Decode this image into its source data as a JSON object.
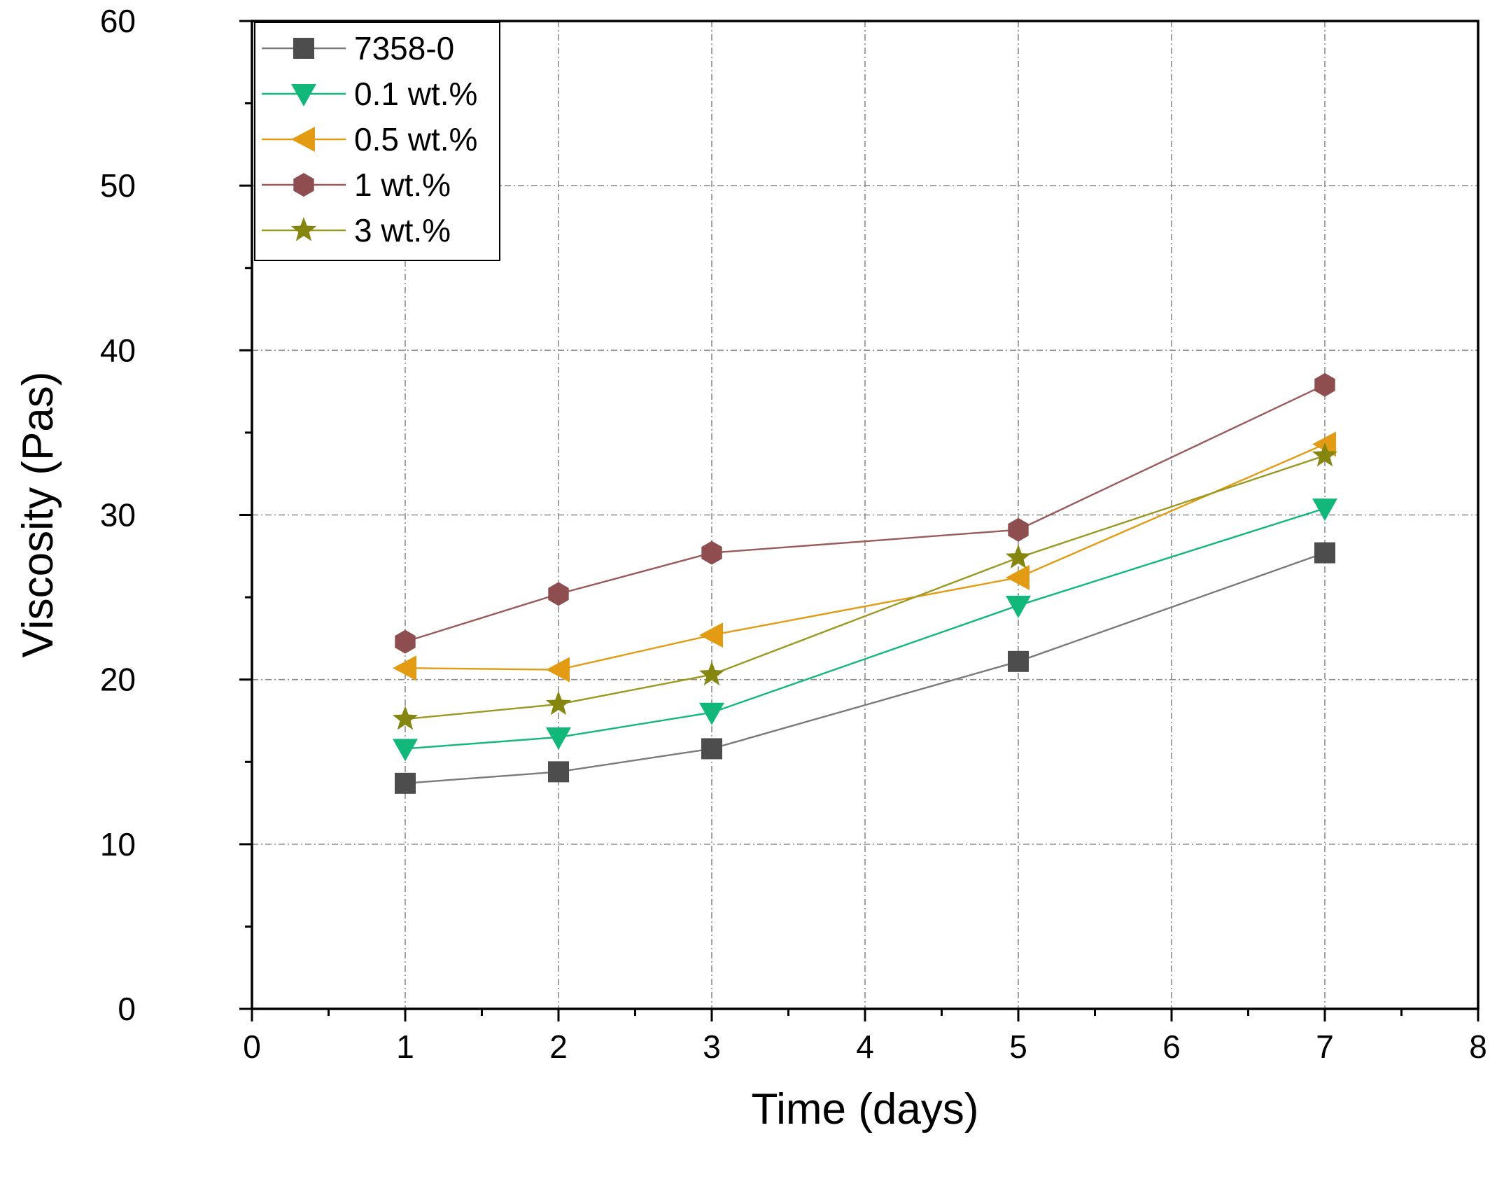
{
  "chart_data": {
    "type": "line",
    "title": "",
    "xlabel": "Time (days)",
    "ylabel": "Viscosity (Pas)",
    "xlim": [
      0,
      8
    ],
    "ylim": [
      0,
      60
    ],
    "xticks": [
      0,
      1,
      2,
      3,
      4,
      5,
      6,
      7,
      8
    ],
    "yticks": [
      0,
      10,
      20,
      30,
      40,
      50,
      60
    ],
    "grid": true,
    "legend_position": "top-left",
    "x": [
      1,
      2,
      3,
      5,
      7
    ],
    "series": [
      {
        "name": "7358-0",
        "marker": "square",
        "color": "#4d4d4d",
        "line_color": "#7a7a7a",
        "values": [
          13.7,
          14.4,
          15.8,
          21.1,
          27.7
        ]
      },
      {
        "name": "0.1 wt.%",
        "marker": "triangle-down",
        "color": "#11b87a",
        "line_color": "#11b87a",
        "values": [
          15.8,
          16.5,
          18.0,
          24.5,
          30.4
        ]
      },
      {
        "name": "0.5 wt.%",
        "marker": "triangle-left",
        "color": "#e29b12",
        "line_color": "#e29b12",
        "values": [
          20.7,
          20.6,
          22.7,
          26.2,
          34.3
        ]
      },
      {
        "name": "1 wt.%",
        "marker": "hexagon",
        "color": "#8e4e50",
        "line_color": "#9a5a5c",
        "values": [
          22.3,
          25.2,
          27.7,
          29.1,
          37.9
        ]
      },
      {
        "name": "3 wt.%",
        "marker": "star",
        "color": "#85860f",
        "line_color": "#9a9a22",
        "values": [
          17.6,
          18.5,
          20.3,
          27.4,
          33.6
        ]
      }
    ]
  }
}
